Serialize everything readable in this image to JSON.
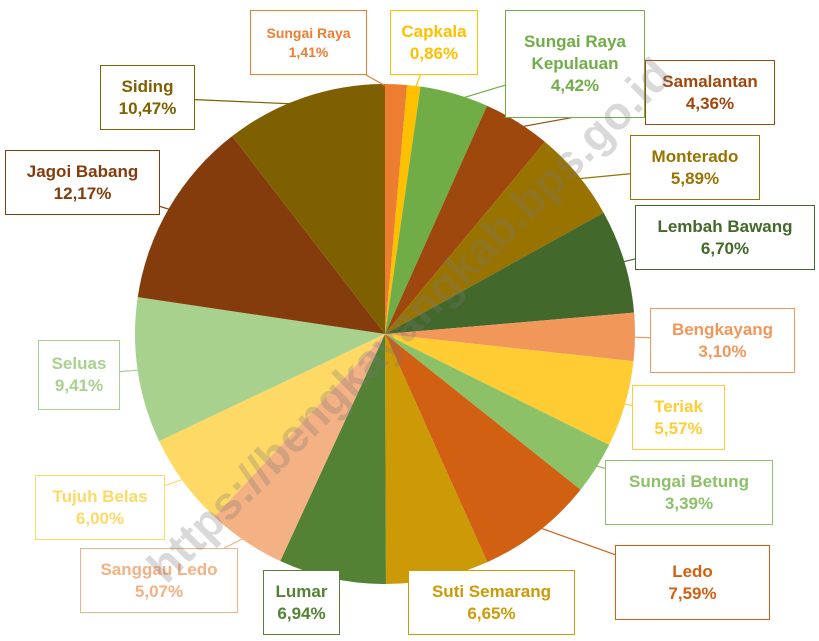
{
  "chart_data": {
    "type": "pie",
    "categories": [
      "Sungai Raya",
      "Capkala",
      "Sungai Raya Kepulauan",
      "Samalantan",
      "Monterado",
      "Lembah Bawang",
      "Bengkayang",
      "Teriak",
      "Sungai Betung",
      "Ledo",
      "Suti Semarang",
      "Lumar",
      "Sanggau Ledo",
      "Tujuh Belas",
      "Seluas",
      "Jagoi Babang",
      "Siding"
    ],
    "values": [
      1.41,
      0.86,
      4.42,
      4.36,
      5.89,
      6.7,
      3.1,
      5.57,
      3.39,
      7.59,
      6.65,
      6.94,
      5.07,
      6.0,
      9.41,
      12.17,
      10.47
    ],
    "value_labels": [
      "1,41%",
      "0,86%",
      "4,42%",
      "4,36%",
      "5,89%",
      "6,70%",
      "3,10%",
      "5,57%",
      "3,39%",
      "7,59%",
      "6,65%",
      "6,94%",
      "5,07%",
      "6,00%",
      "9,41%",
      "12,17%",
      "10,47%"
    ],
    "colors": [
      "#ed7d31",
      "#ffc000",
      "#70ad47",
      "#9e480e",
      "#997300",
      "#43682b",
      "#f1975a",
      "#ffcd33",
      "#8cc168",
      "#d26012",
      "#cc9a06",
      "#548235",
      "#f4b183",
      "#ffd966",
      "#a9d18e",
      "#843c0c",
      "#7f6000"
    ],
    "watermark": "https://bengkayangkab.bps.go.id"
  }
}
